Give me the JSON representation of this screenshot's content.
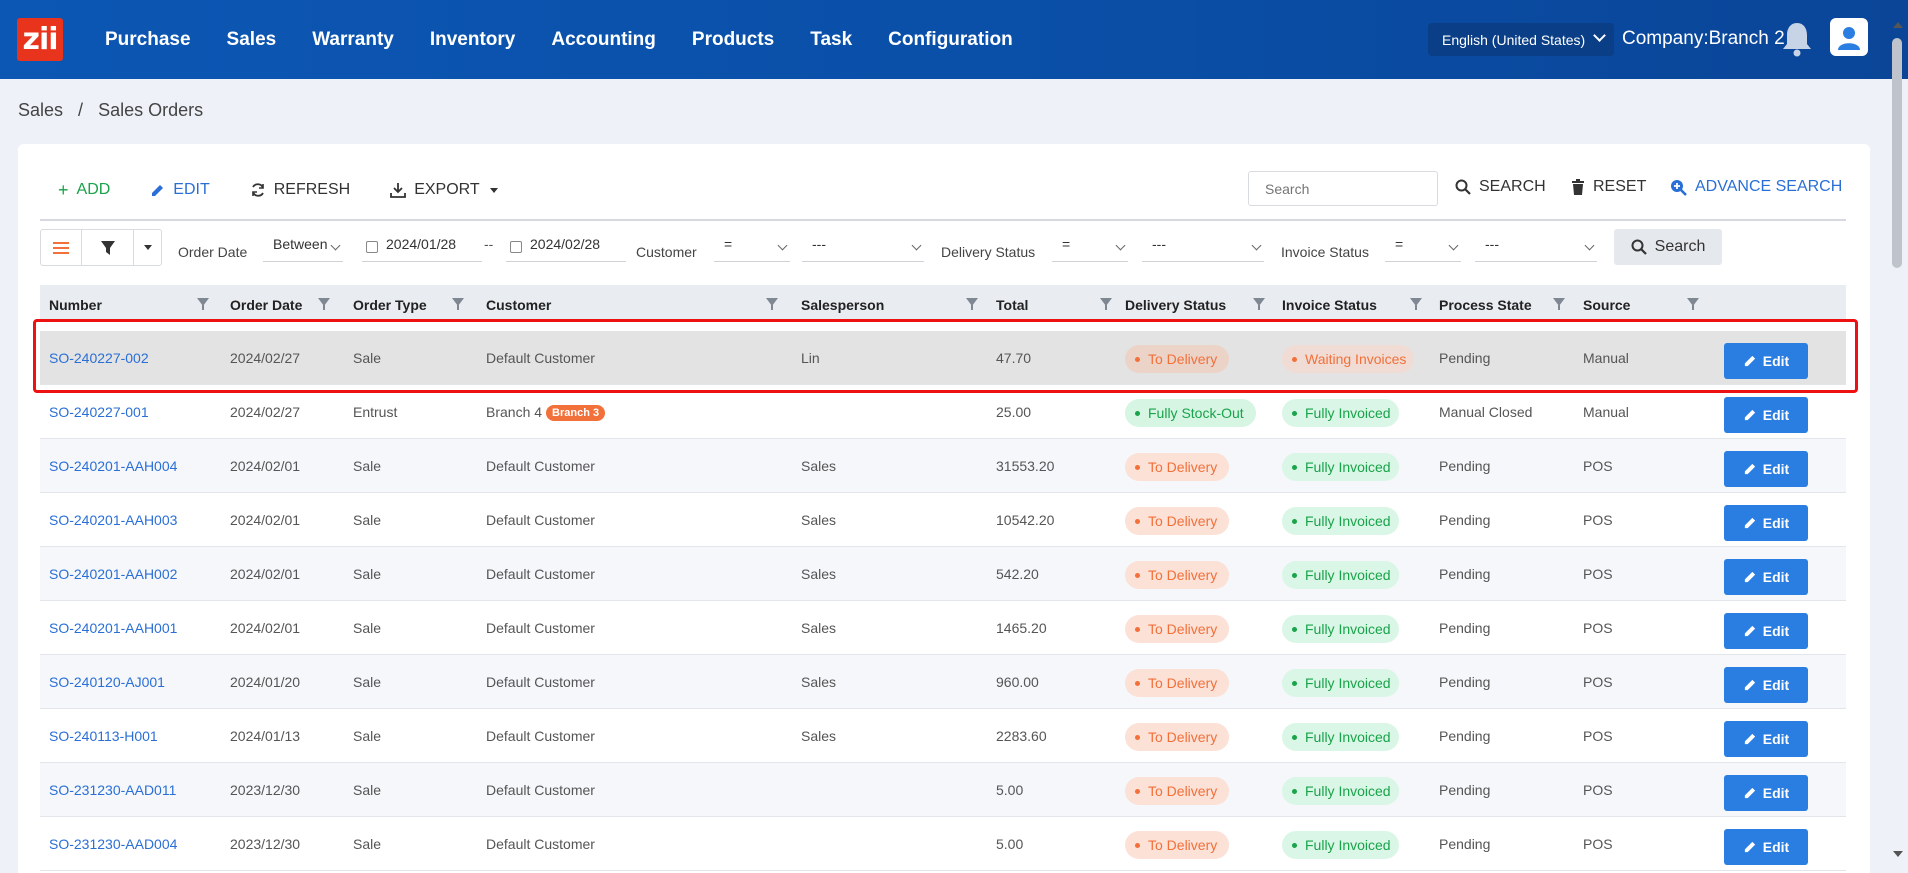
{
  "app": {
    "logo_text": "zii",
    "nav": [
      "Purchase",
      "Sales",
      "Warranty",
      "Inventory",
      "Accounting",
      "Products",
      "Task",
      "Configuration"
    ],
    "language": "English (United States)",
    "company": "Company:Branch 2"
  },
  "breadcrumb": [
    "Sales",
    "/",
    "Sales Orders"
  ],
  "toolbar": {
    "add": "ADD",
    "edit": "EDIT",
    "refresh": "REFRESH",
    "export": "EXPORT",
    "search_placeholder": "Search",
    "search": "SEARCH",
    "reset": "RESET",
    "advance_search": "ADVANCE SEARCH"
  },
  "filters": {
    "order_date_label": "Order Date",
    "order_date_op": "Between",
    "date_from": "2024/01/28",
    "date_sep": "--",
    "date_to": "2024/02/28",
    "customer_label": "Customer",
    "customer_op": "=",
    "customer_val": "---",
    "delivery_label": "Delivery Status",
    "delivery_op": "=",
    "delivery_val": "---",
    "invoice_label": "Invoice Status",
    "invoice_op": "=",
    "invoice_val": "---",
    "search_btn": "Search"
  },
  "table": {
    "headers": [
      "Number",
      "Order Date",
      "Order Type",
      "Customer",
      "Salesperson",
      "Total",
      "Delivery Status",
      "Invoice Status",
      "Process State",
      "Source"
    ],
    "edit_label": "Edit",
    "rows": [
      {
        "number": "SO-240227-002",
        "date": "2024/02/27",
        "type": "Sale",
        "customer": "Default Customer",
        "badge": "",
        "salesperson": "Lin",
        "total": "47.70",
        "delivery": "To Delivery",
        "invoice": "Waiting Invoices",
        "process": "Pending",
        "source": "Manual"
      },
      {
        "number": "SO-240227-001",
        "date": "2024/02/27",
        "type": "Entrust",
        "customer": "Branch 4",
        "badge": "Branch 3",
        "salesperson": "",
        "total": "25.00",
        "delivery": "Fully Stock-Out",
        "invoice": "Fully Invoiced",
        "process": "Manual Closed",
        "source": "Manual"
      },
      {
        "number": "SO-240201-AAH004",
        "date": "2024/02/01",
        "type": "Sale",
        "customer": "Default Customer",
        "badge": "",
        "salesperson": "Sales",
        "total": "31553.20",
        "delivery": "To Delivery",
        "invoice": "Fully Invoiced",
        "process": "Pending",
        "source": "POS"
      },
      {
        "number": "SO-240201-AAH003",
        "date": "2024/02/01",
        "type": "Sale",
        "customer": "Default Customer",
        "badge": "",
        "salesperson": "Sales",
        "total": "10542.20",
        "delivery": "To Delivery",
        "invoice": "Fully Invoiced",
        "process": "Pending",
        "source": "POS"
      },
      {
        "number": "SO-240201-AAH002",
        "date": "2024/02/01",
        "type": "Sale",
        "customer": "Default Customer",
        "badge": "",
        "salesperson": "Sales",
        "total": "542.20",
        "delivery": "To Delivery",
        "invoice": "Fully Invoiced",
        "process": "Pending",
        "source": "POS"
      },
      {
        "number": "SO-240201-AAH001",
        "date": "2024/02/01",
        "type": "Sale",
        "customer": "Default Customer",
        "badge": "",
        "salesperson": "Sales",
        "total": "1465.20",
        "delivery": "To Delivery",
        "invoice": "Fully Invoiced",
        "process": "Pending",
        "source": "POS"
      },
      {
        "number": "SO-240120-AJ001",
        "date": "2024/01/20",
        "type": "Sale",
        "customer": "Default Customer",
        "badge": "",
        "salesperson": "Sales",
        "total": "960.00",
        "delivery": "To Delivery",
        "invoice": "Fully Invoiced",
        "process": "Pending",
        "source": "POS"
      },
      {
        "number": "SO-240113-H001",
        "date": "2024/01/13",
        "type": "Sale",
        "customer": "Default Customer",
        "badge": "",
        "salesperson": "Sales",
        "total": "2283.60",
        "delivery": "To Delivery",
        "invoice": "Fully Invoiced",
        "process": "Pending",
        "source": "POS"
      },
      {
        "number": "SO-231230-AAD011",
        "date": "2023/12/30",
        "type": "Sale",
        "customer": "Default Customer",
        "badge": "",
        "salesperson": "",
        "total": "5.00",
        "delivery": "To Delivery",
        "invoice": "Fully Invoiced",
        "process": "Pending",
        "source": "POS"
      },
      {
        "number": "SO-231230-AAD004",
        "date": "2023/12/30",
        "type": "Sale",
        "customer": "Default Customer",
        "badge": "",
        "salesperson": "",
        "total": "5.00",
        "delivery": "To Delivery",
        "invoice": "Fully Invoiced",
        "process": "Pending",
        "source": "POS"
      }
    ]
  },
  "colors": {
    "nav_bg": "#0c57b4",
    "accent": "#2a7de1",
    "warn": "#f2703a",
    "ok": "#19a34a",
    "highlight": "#e11111"
  }
}
